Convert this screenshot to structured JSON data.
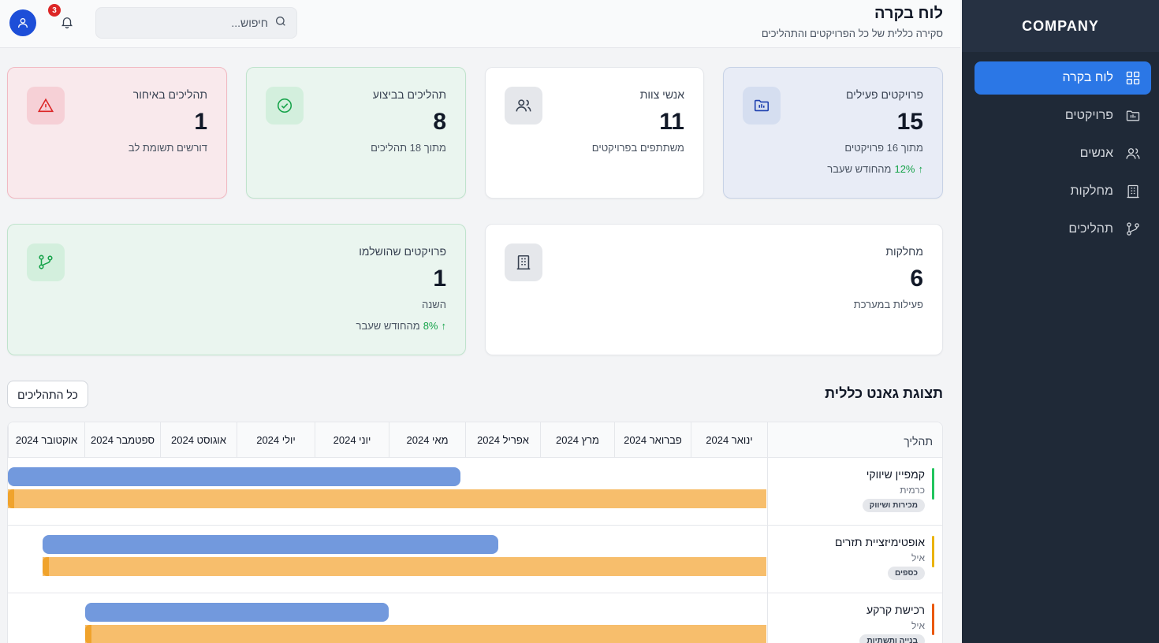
{
  "sidebar": {
    "brand": "COMPANY",
    "items": [
      {
        "label": "לוח בקרה",
        "icon": "dashboard-icon",
        "active": true
      },
      {
        "label": "פרויקטים",
        "icon": "folder-icon",
        "active": false
      },
      {
        "label": "אנשים",
        "icon": "users-icon",
        "active": false
      },
      {
        "label": "מחלקות",
        "icon": "building-icon",
        "active": false
      },
      {
        "label": "תהליכים",
        "icon": "git-branch-icon",
        "active": false
      }
    ]
  },
  "header": {
    "title": "לוח בקרה",
    "subtitle": "סקירה כללית של כל הפרויקטים והתהליכים",
    "search_placeholder": "חיפוש...",
    "notification_count": "3"
  },
  "cards": {
    "active_projects": {
      "label": "פרויקטים פעילים",
      "value": "15",
      "sub": "מתוך 16 פרויקטים",
      "trend_pct": "12%",
      "trend_text": "מהחודש שעבר",
      "trend_arrow": "↑"
    },
    "team": {
      "label": "אנשי צוות",
      "value": "11",
      "sub": "משתתפים בפרויקטים"
    },
    "processes_running": {
      "label": "תהליכים בביצוע",
      "value": "8",
      "sub": "מתוך 18 תהליכים"
    },
    "processes_late": {
      "label": "תהליכים באיחור",
      "value": "1",
      "sub": "דורשים תשומת לב"
    },
    "departments": {
      "label": "מחלקות",
      "value": "6",
      "sub": "פעילות במערכת"
    },
    "completed": {
      "label": "פרויקטים שהושלמו",
      "value": "1",
      "sub": "השנה",
      "trend_pct": "8%",
      "trend_text": "מהחודש שעבר",
      "trend_arrow": "↑"
    }
  },
  "gantt": {
    "title": "תצוגת גאנט כללית",
    "all_button": "כל התהליכים",
    "process_header": "תהליך",
    "months": [
      "ינואר 2024",
      "פברואר 2024",
      "מרץ 2024",
      "אפריל 2024",
      "מאי 2024",
      "יוני 2024",
      "יולי 2024",
      "אוגוסט 2024",
      "ספטמבר 2024",
      "אוקטובר 2024"
    ],
    "rows": [
      {
        "name": "קמפיין שיווקי",
        "owner": "כרמית",
        "tag": "מכירות ושיווק",
        "stripe_color": "#22c55e"
      },
      {
        "name": "אופטימיזציית תזרים",
        "owner": "איל",
        "tag": "כספים",
        "stripe_color": "#eab308"
      },
      {
        "name": "רכישת קרקע",
        "owner": "איל",
        "tag": "בנייה ותשתיות",
        "stripe_color": "#ea580c"
      }
    ]
  },
  "colors": {
    "accent": "#2b77e6",
    "sidebar": "#1f2937",
    "plan_bar": "#7299dd",
    "actual_bar": "#f7be6c"
  }
}
